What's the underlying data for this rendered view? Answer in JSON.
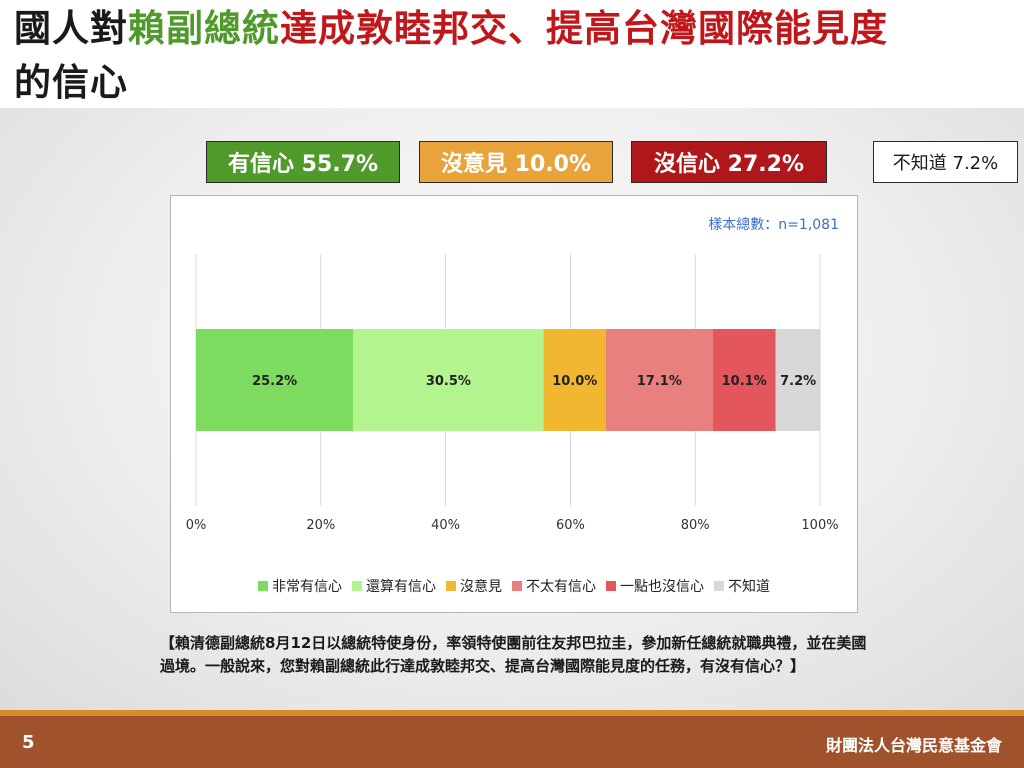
{
  "slide": {
    "title_part1": "國人對",
    "title_part2": "賴副總統",
    "title_part3": "達成敦睦邦交、提高台灣國際能見度",
    "title_line2": "的信心",
    "page_number": "5",
    "organization": "財團法人台灣民意基金會",
    "question": "【賴清德副總統8月12日以總統特使身份，率領特使團前往友邦巴拉圭，參加新任總統就職典禮，並在美國過境。一般說來，您對賴副總統此行達成敦睦邦交、提高台灣國際能見度的任務，有沒有信心？】"
  },
  "summary": [
    {
      "label": "有信心 55.7%",
      "color": "#4f9a2a"
    },
    {
      "label": "沒意見 10.0%",
      "color": "#e8a33a"
    },
    {
      "label": "沒信心 27.2%",
      "color": "#b0171b"
    },
    {
      "label": "不知道 7.2%",
      "color": "#ffffff"
    }
  ],
  "chart_data": {
    "type": "bar",
    "orientation": "horizontal-stacked",
    "sample_note": "樣本總數：n=1,081",
    "x_ticks": [
      "0%",
      "20%",
      "40%",
      "60%",
      "80%",
      "100%"
    ],
    "xlim": [
      0,
      100
    ],
    "grid": true,
    "legend_position": "bottom",
    "series": [
      {
        "name": "非常有信心",
        "value": 25.2,
        "label": "25.2%",
        "color": "#7ddc5f"
      },
      {
        "name": "還算有信心",
        "value": 30.5,
        "label": "30.5%",
        "color": "#b4f48e"
      },
      {
        "name": "沒意見",
        "value": 10.0,
        "label": "10.0%",
        "color": "#f2b731"
      },
      {
        "name": "不太有信心",
        "value": 17.1,
        "label": "17.1%",
        "color": "#e88080"
      },
      {
        "name": "一點也沒信心",
        "value": 10.1,
        "label": "10.1%",
        "color": "#e2565c"
      },
      {
        "name": "不知道",
        "value": 7.2,
        "label": "7.2%",
        "color": "#d8d8d8"
      }
    ]
  }
}
